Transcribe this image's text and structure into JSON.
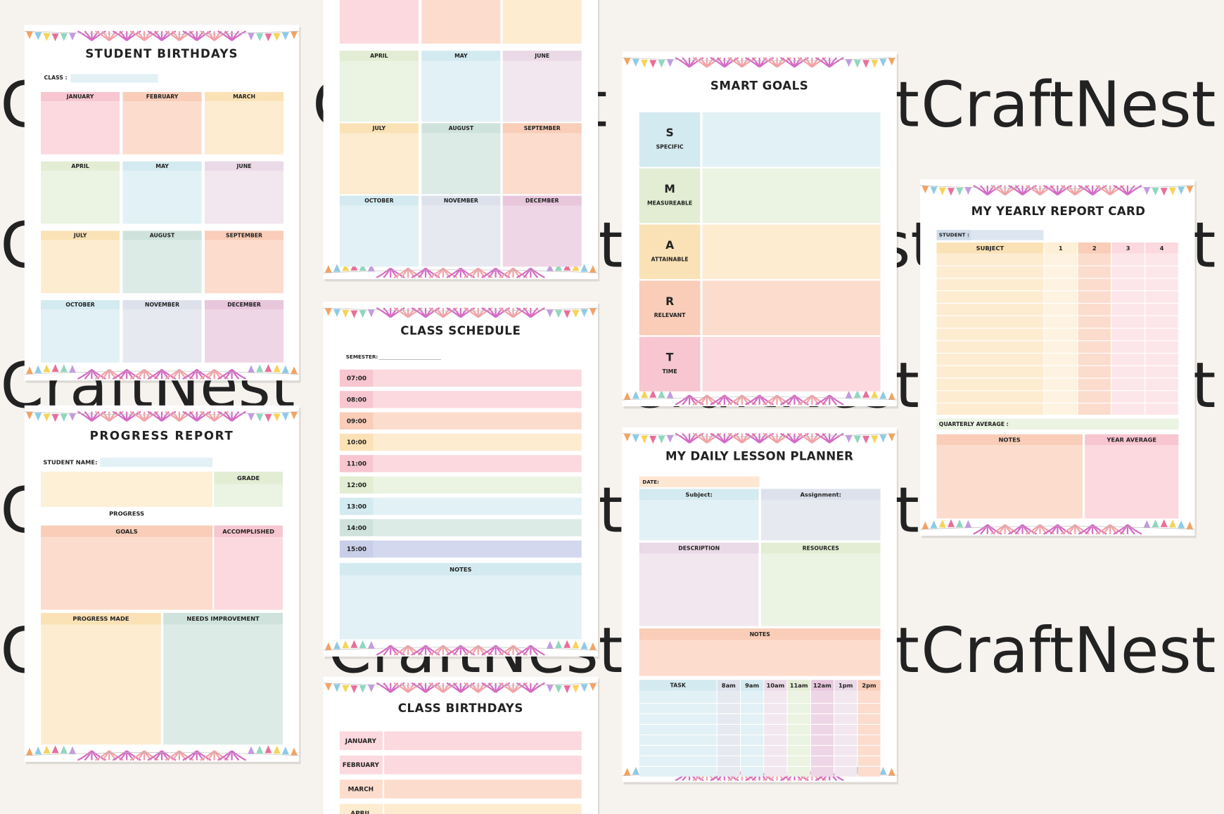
{
  "watermark": "CraftNest",
  "student_birthdays": {
    "title": "STUDENT  BIRTHDAYS",
    "class_label": "CLASS :",
    "months": [
      "JANUARY",
      "FEBRUARY",
      "MARCH",
      "APRIL",
      "MAY",
      "JUNE",
      "JULY",
      "AUGUST",
      "SEPTEMBER",
      "OCTOBER",
      "NOVEMBER",
      "DECEMBER"
    ]
  },
  "birthdays_continued": {
    "months": [
      "APRIL",
      "MAY",
      "JUNE",
      "JULY",
      "AUGUST",
      "SEPTEMBER",
      "OCTOBER",
      "NOVEMBER",
      "DECEMBER"
    ]
  },
  "class_schedule": {
    "title": "CLASS SCHEDULE",
    "semester_label": "SEMESTER:",
    "times": [
      "07:00",
      "08:00",
      "09:00",
      "10:00",
      "11:00",
      "12:00",
      "13:00",
      "14:00",
      "15:00"
    ],
    "notes_label": "NOTES"
  },
  "class_birthdays": {
    "title": "CLASS BIRTHDAYS",
    "months": [
      "JANUARY",
      "FEBRUARY",
      "MARCH",
      "APRIL"
    ]
  },
  "progress_report": {
    "title": "PROGRESS  REPORT",
    "student_name_label": "STUDENT NAME:",
    "grade_label": "GRADE",
    "progress_label": "PROGRESS",
    "goals_label": "GOALS",
    "accomplished_label": "ACCOMPLISHED",
    "progress_made_label": "PROGRESS MADE",
    "needs_improvement_label": "NEEDS IMPROVEMENT"
  },
  "smart_goals": {
    "title": "SMART GOALS",
    "rows": [
      {
        "letter": "S",
        "word": "SPECIFIC"
      },
      {
        "letter": "M",
        "word": "MEASUREABLE"
      },
      {
        "letter": "A",
        "word": "ATTAINABLE"
      },
      {
        "letter": "R",
        "word": "RELEVANT"
      },
      {
        "letter": "T",
        "word": "TIME"
      }
    ]
  },
  "lesson_planner": {
    "title": "MY DAILY LESSON PLANNER",
    "date_label": "DATE:",
    "subject_label": "Subject:",
    "assignment_label": "Assignment:",
    "description_label": "DESCRIPTION",
    "resources_label": "RESOURCES",
    "notes_label": "NOTES",
    "task_label": "TASK",
    "hours": [
      "8am",
      "9am",
      "10am",
      "11am",
      "12am",
      "1pm",
      "2pm"
    ]
  },
  "report_card": {
    "title": "MY YEARLY REPORT CARD",
    "student_label": "STUDENT :",
    "subject_label": "SUBJECT",
    "quarters": [
      "1",
      "2",
      "3",
      "4"
    ],
    "quarterly_average_label": "QUARTERLY AVERAGE :",
    "notes_label": "NOTES",
    "year_average_label": "YEAR AVERAGE"
  }
}
